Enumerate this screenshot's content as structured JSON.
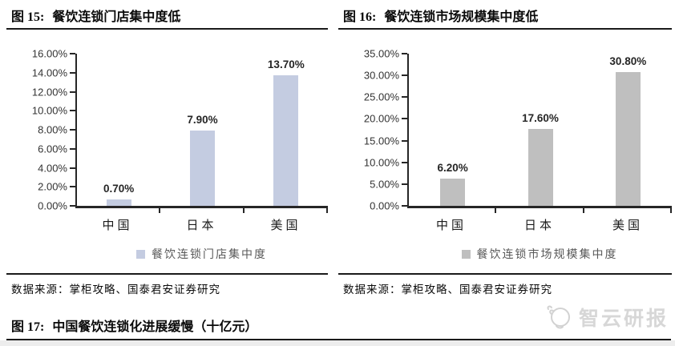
{
  "figures": [
    {
      "number": "图 15:",
      "title": "餐饮连锁门店集中度低",
      "source": "数据来源：掌柜攻略、国泰君安证券研究"
    },
    {
      "number": "图 16:",
      "title": "餐饮连锁市场规模集中度低",
      "source": "数据来源：掌柜攻略、国泰君安证券研究"
    }
  ],
  "next_figure": {
    "number": "图 17:",
    "title": "中国餐饮连锁化进展缓慢（十亿元）"
  },
  "watermark": {
    "text": "智云研报",
    "icon": "mascot-cloud-face"
  },
  "colors": {
    "left_bar": "#c4cce1",
    "right_bar": "#bfbfbf",
    "axis": "#262626",
    "rule": "#1a1a1a"
  },
  "chart_data": [
    {
      "type": "bar",
      "title": "餐饮连锁门店集中度低",
      "categories": [
        "中国",
        "日本",
        "美国"
      ],
      "values": [
        0.7,
        7.9,
        13.7
      ],
      "value_labels": [
        "0.70%",
        "7.90%",
        "13.70%"
      ],
      "legend": [
        "餐饮连锁门店集中度"
      ],
      "legend_position": "bottom",
      "bar_color": "#c4cce1",
      "xlabel": "",
      "ylabel": "",
      "ylim": [
        0,
        16
      ],
      "ytick_step": 2,
      "ytick_labels": [
        "16.00%",
        "14.00%",
        "12.00%",
        "10.00%",
        "8.00%",
        "6.00%",
        "4.00%",
        "2.00%",
        "0.00%"
      ],
      "grid": false
    },
    {
      "type": "bar",
      "title": "餐饮连锁市场规模集中度低",
      "categories": [
        "中国",
        "日本",
        "美国"
      ],
      "values": [
        6.2,
        17.6,
        30.8
      ],
      "value_labels": [
        "6.20%",
        "17.60%",
        "30.80%"
      ],
      "legend": [
        "餐饮连锁市场规模集中度"
      ],
      "legend_position": "bottom",
      "bar_color": "#bfbfbf",
      "xlabel": "",
      "ylabel": "",
      "ylim": [
        0,
        35
      ],
      "ytick_step": 5,
      "ytick_labels": [
        "35.00%",
        "30.00%",
        "25.00%",
        "20.00%",
        "15.00%",
        "10.00%",
        "5.00%",
        "0.00%"
      ],
      "grid": false
    }
  ]
}
